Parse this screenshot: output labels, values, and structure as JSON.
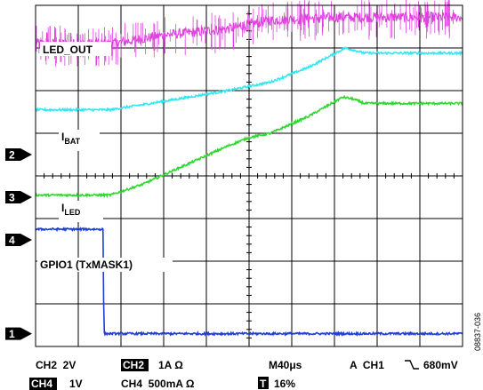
{
  "chart_data": {
    "type": "line",
    "title": "",
    "grid": true,
    "x": {
      "divisions": 10,
      "range": [
        0,
        10
      ]
    },
    "y": {
      "divisions": 8,
      "range": [
        0,
        8
      ]
    },
    "channels": [
      {
        "id": "1",
        "marker_level": 0.3
      },
      {
        "id": "2",
        "marker_level": 4.5
      },
      {
        "id": "3",
        "marker_level": 3.5
      },
      {
        "id": "4",
        "marker_level": 2.5
      }
    ],
    "traces": [
      {
        "name": "LED_OUT",
        "color": "#e040e0",
        "noise": 0.12,
        "spikes": true,
        "points": [
          [
            0,
            7.1
          ],
          [
            1.8,
            7.1
          ],
          [
            3.0,
            7.3
          ],
          [
            4.5,
            7.45
          ],
          [
            5.5,
            7.65
          ],
          [
            7.0,
            7.72
          ],
          [
            10,
            7.72
          ]
        ]
      },
      {
        "name": "I_BAT",
        "color": "#33e6f0",
        "noise": 0.025,
        "spikes": false,
        "points": [
          [
            0,
            5.55
          ],
          [
            1.75,
            5.55
          ],
          [
            3.0,
            5.75
          ],
          [
            4.5,
            6.0
          ],
          [
            5.5,
            6.2
          ],
          [
            6.4,
            6.55
          ],
          [
            7.25,
            7.0
          ],
          [
            7.45,
            6.95
          ],
          [
            7.7,
            6.88
          ],
          [
            10,
            6.88
          ]
        ]
      },
      {
        "name": "I_LED",
        "color": "#2fd82f",
        "noise": 0.025,
        "spikes": false,
        "points": [
          [
            0,
            3.55
          ],
          [
            1.75,
            3.55
          ],
          [
            2.5,
            3.8
          ],
          [
            3.5,
            4.25
          ],
          [
            4.5,
            4.7
          ],
          [
            5.0,
            4.9
          ],
          [
            5.5,
            5.0
          ],
          [
            6.4,
            5.4
          ],
          [
            7.2,
            5.85
          ],
          [
            7.45,
            5.8
          ],
          [
            7.7,
            5.7
          ],
          [
            10,
            5.7
          ]
        ]
      },
      {
        "name": "GPIO1 (TxMASK1)",
        "color": "#1f3fd6",
        "noise": 0.025,
        "spikes": false,
        "points": [
          [
            0,
            2.75
          ],
          [
            1.58,
            2.75
          ],
          [
            1.6,
            0.3
          ],
          [
            10,
            0.3
          ]
        ]
      }
    ],
    "labels": {
      "led_out": "LED_OUT",
      "ibat_main": "I",
      "ibat_sub": "BAT",
      "iled_main": "I",
      "iled_sub": "LED",
      "gpio": "GPIO1 (TxMASK1)"
    },
    "readout": {
      "ch2_scale": "CH2  2V",
      "ch2_badge": "CH2",
      "ch2_coupling": "1A Ω",
      "timebase": "M40μs",
      "trigger_a": "A  CH1",
      "trigger_level": "680mV",
      "ch4_badge": "CH4",
      "ch4_scale": "1V",
      "ch4_coupling": "CH4  500mA Ω",
      "t_badge": "T",
      "t_pos": "16%"
    },
    "figure_id": "08837-036"
  }
}
